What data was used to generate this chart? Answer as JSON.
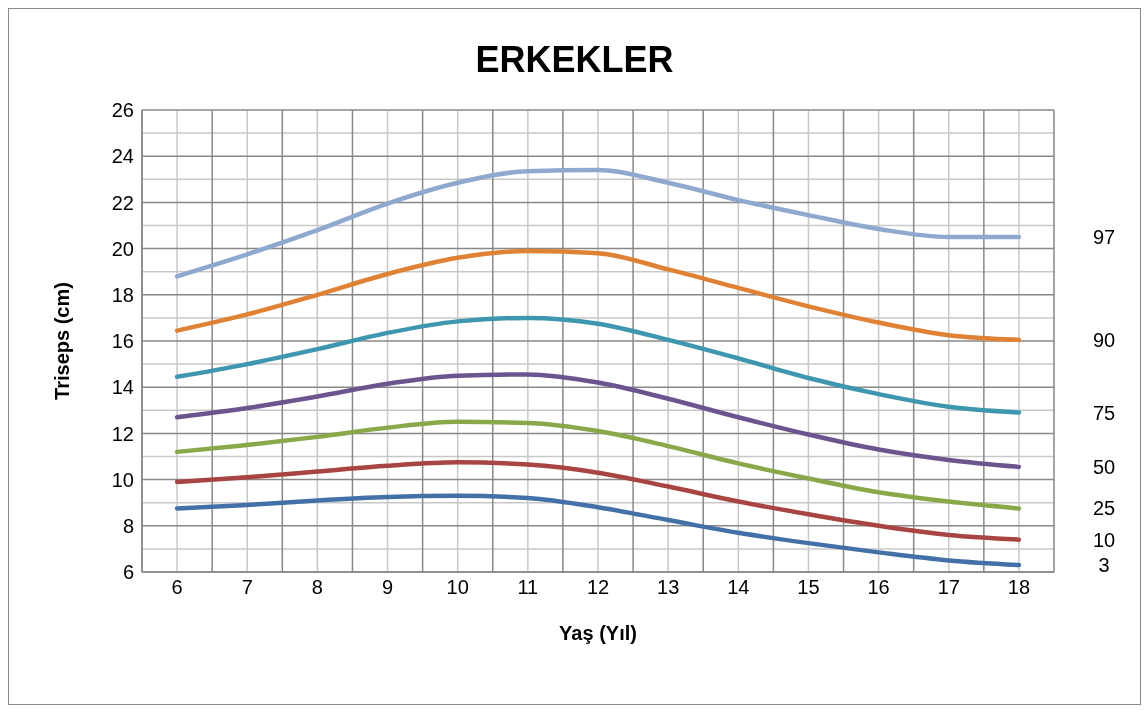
{
  "chart_data": {
    "type": "line",
    "title": "ERKEKLER",
    "xlabel": "Yaş (Yıl)",
    "ylabel": "Triseps (cm)",
    "categories": [
      "6",
      "7",
      "8",
      "9",
      "10",
      "11",
      "12",
      "13",
      "14",
      "15",
      "16",
      "17",
      "18"
    ],
    "ylim": [
      6,
      26
    ],
    "yticks": [
      6,
      8,
      10,
      12,
      14,
      16,
      18,
      20,
      22,
      24,
      26
    ],
    "grid": true,
    "legend": false,
    "marker": "none",
    "line_style": "solid",
    "series": [
      {
        "name": "3",
        "color": "#4470a8",
        "values": [
          8.75,
          8.9,
          9.1,
          9.25,
          9.3,
          9.2,
          8.8,
          8.25,
          7.7,
          7.25,
          6.85,
          6.5,
          6.3
        ]
      },
      {
        "name": "10",
        "color": "#a84441",
        "values": [
          9.9,
          10.1,
          10.35,
          10.6,
          10.75,
          10.65,
          10.3,
          9.7,
          9.05,
          8.5,
          8.0,
          7.6,
          7.4
        ]
      },
      {
        "name": "25",
        "color": "#88a84a",
        "values": [
          11.2,
          11.5,
          11.85,
          12.25,
          12.5,
          12.45,
          12.1,
          11.45,
          10.7,
          10.05,
          9.45,
          9.05,
          8.75
        ]
      },
      {
        "name": "50",
        "color": "#6c558f",
        "values": [
          12.7,
          13.1,
          13.6,
          14.15,
          14.5,
          14.55,
          14.2,
          13.5,
          12.7,
          11.95,
          11.3,
          10.85,
          10.55
        ]
      },
      {
        "name": "75",
        "color": "#3e97ae",
        "values": [
          14.45,
          15.0,
          15.65,
          16.35,
          16.85,
          17.0,
          16.75,
          16.05,
          15.25,
          14.4,
          13.7,
          13.15,
          12.9
        ]
      },
      {
        "name": "90",
        "color": "#e08236",
        "values": [
          16.45,
          17.15,
          18.0,
          18.9,
          19.6,
          19.9,
          19.8,
          19.1,
          18.3,
          17.5,
          16.8,
          16.25,
          16.05
        ]
      },
      {
        "name": "97",
        "color": "#8fa8cf",
        "values": [
          18.8,
          19.75,
          20.8,
          21.95,
          22.85,
          23.35,
          23.4,
          22.85,
          22.1,
          21.45,
          20.85,
          20.5,
          20.5
        ]
      }
    ]
  }
}
